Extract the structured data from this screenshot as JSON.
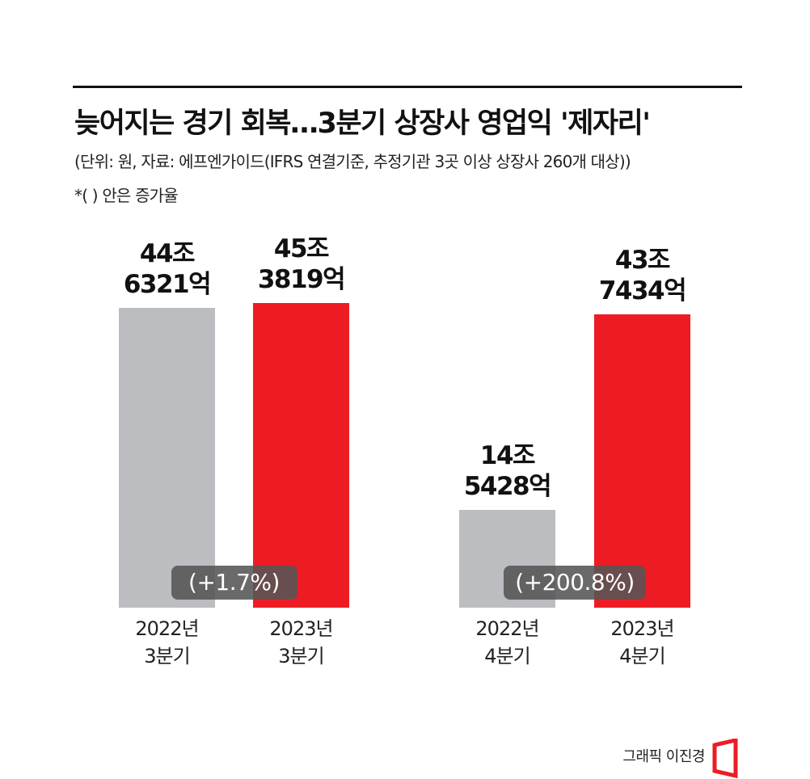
{
  "chart_data": {
    "type": "bar",
    "title": "늦어지는 경기 회복…3분기 상장사 영업익 '제자리'",
    "subtitle": "(단위: 원, 자료: 에프엔가이드(IFRS 연결기준, 추정기관 3곳 이상 상장사 260개 대상))",
    "note": "*(   ) 안은 증가율",
    "categories": [
      "2022년\n3분기",
      "2023년\n3분기",
      "2022년\n4분기",
      "2023년\n4분기"
    ],
    "values": [
      446321,
      453819,
      145428,
      437434
    ],
    "value_labels": [
      "44조\n6321억",
      "45조\n3819억",
      "14조\n5428억",
      "43조\n7434억"
    ],
    "colors": [
      "#bcbdc0",
      "#ed1c24",
      "#bcbdc0",
      "#ed1c24"
    ],
    "annotations": [
      "(+1.7%)",
      "(+200.8%)"
    ],
    "credit": "그래픽 이진경"
  }
}
